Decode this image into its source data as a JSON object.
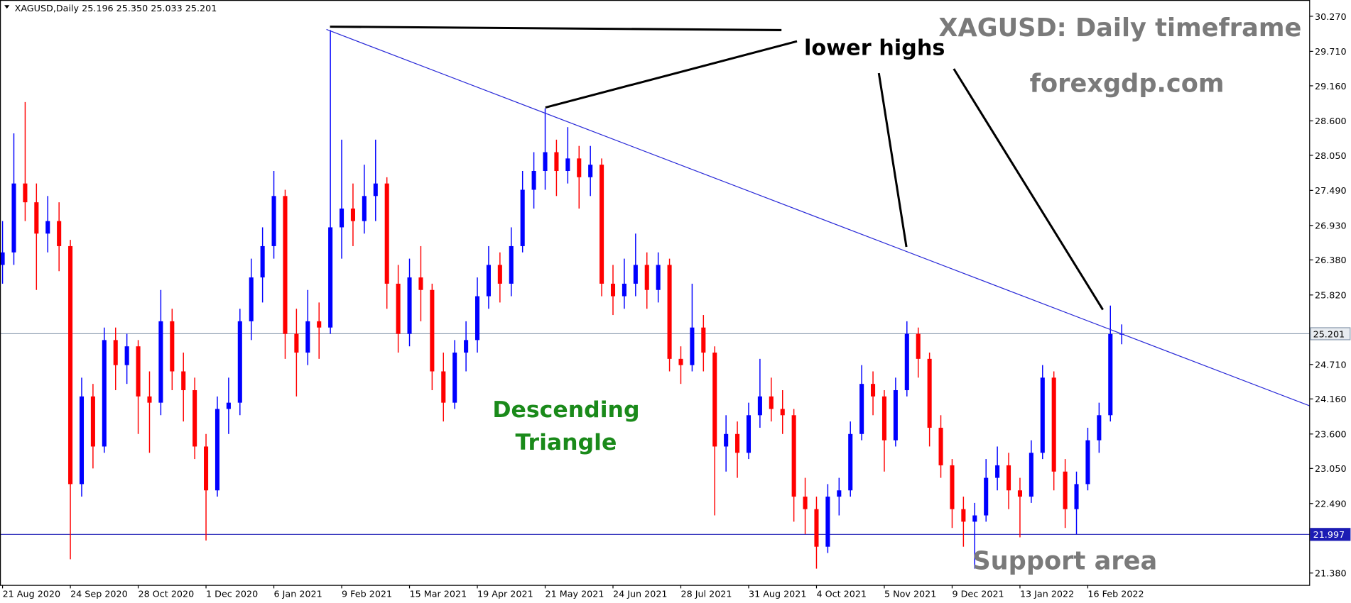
{
  "chart_data": {
    "type": "candlestick",
    "header": "XAGUSD,Daily  25.196 25.350 25.033 25.201",
    "title": "XAGUSD: Daily timeframe",
    "subtitle": "forexgdp.com",
    "annotations": {
      "highs": "lower highs",
      "pattern": [
        "Descending",
        "Triangle"
      ],
      "support": "Support area"
    },
    "up_color": "#0000ff",
    "down_color": "#ff0000",
    "xlim": [
      -0.9,
      462.5
    ],
    "ylim": [
      21.19,
      30.53
    ],
    "xticks": [
      {
        "value": 0,
        "label": "21 Aug 2020"
      },
      {
        "value": 24,
        "label": "24 Sep 2020"
      },
      {
        "value": 48,
        "label": "28 Oct 2020"
      },
      {
        "value": 72,
        "label": "1 Dec 2020"
      },
      {
        "value": 96,
        "label": "6 Jan 2021"
      },
      {
        "value": 120,
        "label": "9 Feb 2021"
      },
      {
        "value": 144,
        "label": "15 Mar 2021"
      },
      {
        "value": 168,
        "label": "19 Apr 2021"
      },
      {
        "value": 192,
        "label": "21 May 2021"
      },
      {
        "value": 216,
        "label": "24 Jun 2021"
      },
      {
        "value": 240,
        "label": "28 Jul 2021"
      },
      {
        "value": 264,
        "label": "31 Aug 2021"
      },
      {
        "value": 288,
        "label": "4 Oct 2021"
      },
      {
        "value": 312,
        "label": "5 Nov 2021"
      },
      {
        "value": 336,
        "label": "9 Dec 2021"
      },
      {
        "value": 360,
        "label": "13 Jan 2022"
      },
      {
        "value": 384,
        "label": "16 Feb 2022"
      }
    ],
    "yticks": [
      {
        "value": 30.27,
        "label": "30.270"
      },
      {
        "value": 29.71,
        "label": "29.710"
      },
      {
        "value": 29.16,
        "label": "29.160"
      },
      {
        "value": 28.6,
        "label": "28.600"
      },
      {
        "value": 28.05,
        "label": "28.050"
      },
      {
        "value": 27.49,
        "label": "27.490"
      },
      {
        "value": 26.93,
        "label": "26.930"
      },
      {
        "value": 26.38,
        "label": "26.380"
      },
      {
        "value": 25.82,
        "label": "25.820"
      },
      {
        "value": 24.71,
        "label": "24.710"
      },
      {
        "value": 24.16,
        "label": "24.160"
      },
      {
        "value": 23.6,
        "label": "23.600"
      },
      {
        "value": 23.05,
        "label": "23.050"
      },
      {
        "value": 22.49,
        "label": "22.490"
      },
      {
        "value": 21.38,
        "label": "21.380"
      }
    ],
    "price_lines": [
      {
        "value": 25.201,
        "color": "#8a9aae"
      },
      {
        "value": 21.997,
        "color": "#1c1cb4"
      }
    ],
    "trendline": {
      "x": [
        114.6,
        462.5
      ],
      "y": [
        30.06,
        24.05
      ],
      "color": "#2a2ad8"
    },
    "x": [
      0,
      4,
      8,
      12,
      16,
      20,
      24,
      28,
      32,
      36,
      40,
      44,
      48,
      52,
      56,
      60,
      64,
      68,
      72,
      76,
      80,
      84,
      88,
      92,
      96,
      100,
      104,
      108,
      112,
      116,
      120,
      124,
      128,
      132,
      136,
      140,
      144,
      148,
      152,
      156,
      160,
      164,
      168,
      172,
      176,
      180,
      184,
      188,
      192,
      196,
      200,
      204,
      208,
      212,
      216,
      220,
      224,
      228,
      232,
      236,
      240,
      244,
      248,
      252,
      256,
      260,
      264,
      268,
      272,
      276,
      280,
      284,
      288,
      292,
      296,
      300,
      304,
      308,
      312,
      316,
      320,
      324,
      328,
      332,
      336,
      340,
      344,
      348,
      352,
      356,
      360,
      364,
      368,
      372,
      376,
      380,
      384,
      388,
      392,
      396
    ],
    "ohlc": [
      [
        26.3,
        27.0,
        26.0,
        26.5
      ],
      [
        26.5,
        28.4,
        26.3,
        27.6
      ],
      [
        27.6,
        28.9,
        27.0,
        27.3
      ],
      [
        27.3,
        27.6,
        25.9,
        26.8
      ],
      [
        26.8,
        27.4,
        26.5,
        27.0
      ],
      [
        27.0,
        27.3,
        26.2,
        26.6
      ],
      [
        26.6,
        26.7,
        21.6,
        22.8
      ],
      [
        22.8,
        24.5,
        22.6,
        24.2
      ],
      [
        24.2,
        24.4,
        23.05,
        23.4
      ],
      [
        23.4,
        25.3,
        23.3,
        25.1
      ],
      [
        25.1,
        25.3,
        24.3,
        24.7
      ],
      [
        24.7,
        25.2,
        24.4,
        25.0
      ],
      [
        25.0,
        25.1,
        23.6,
        24.2
      ],
      [
        24.2,
        24.6,
        23.3,
        24.1
      ],
      [
        24.1,
        25.9,
        23.9,
        25.4
      ],
      [
        25.4,
        25.6,
        24.3,
        24.6
      ],
      [
        24.6,
        24.9,
        23.8,
        24.3
      ],
      [
        24.3,
        24.5,
        23.2,
        23.4
      ],
      [
        23.4,
        23.6,
        21.9,
        22.7
      ],
      [
        22.7,
        24.2,
        22.6,
        24.0
      ],
      [
        24.0,
        24.5,
        23.6,
        24.1
      ],
      [
        24.1,
        25.6,
        23.9,
        25.4
      ],
      [
        25.4,
        26.4,
        25.1,
        26.1
      ],
      [
        26.1,
        26.9,
        25.7,
        26.6
      ],
      [
        26.6,
        27.8,
        26.4,
        27.4
      ],
      [
        27.4,
        27.5,
        24.8,
        25.2
      ],
      [
        25.2,
        25.6,
        24.2,
        24.9
      ],
      [
        24.9,
        25.9,
        24.7,
        25.4
      ],
      [
        25.4,
        25.7,
        24.8,
        25.3
      ],
      [
        25.3,
        30.05,
        25.2,
        26.9
      ],
      [
        26.9,
        28.3,
        26.4,
        27.2
      ],
      [
        27.2,
        27.6,
        26.6,
        27.0
      ],
      [
        27.0,
        27.9,
        26.8,
        27.4
      ],
      [
        27.4,
        28.3,
        27.0,
        27.6
      ],
      [
        27.6,
        27.7,
        25.6,
        26.0
      ],
      [
        26.0,
        26.3,
        24.9,
        25.2
      ],
      [
        25.2,
        26.4,
        25.0,
        26.1
      ],
      [
        26.1,
        26.6,
        25.4,
        25.9
      ],
      [
        25.9,
        26.0,
        24.3,
        24.6
      ],
      [
        24.6,
        24.9,
        23.8,
        24.1
      ],
      [
        24.1,
        25.1,
        24.0,
        24.9
      ],
      [
        24.9,
        25.4,
        24.6,
        25.1
      ],
      [
        25.1,
        26.1,
        24.9,
        25.8
      ],
      [
        25.8,
        26.6,
        25.6,
        26.3
      ],
      [
        26.3,
        26.5,
        25.7,
        26.0
      ],
      [
        26.0,
        26.9,
        25.8,
        26.6
      ],
      [
        26.6,
        27.8,
        26.5,
        27.5
      ],
      [
        27.5,
        28.1,
        27.2,
        27.8
      ],
      [
        27.8,
        28.8,
        27.5,
        28.1
      ],
      [
        28.1,
        28.3,
        27.4,
        27.8
      ],
      [
        27.8,
        28.5,
        27.6,
        28.0
      ],
      [
        28.0,
        28.2,
        27.2,
        27.7
      ],
      [
        27.7,
        28.2,
        27.4,
        27.9
      ],
      [
        27.9,
        28.0,
        25.8,
        26.0
      ],
      [
        26.0,
        26.3,
        25.5,
        25.8
      ],
      [
        25.8,
        26.4,
        25.6,
        26.0
      ],
      [
        26.0,
        26.8,
        25.8,
        26.3
      ],
      [
        26.3,
        26.5,
        25.6,
        25.9
      ],
      [
        25.9,
        26.5,
        25.7,
        26.3
      ],
      [
        26.3,
        26.4,
        24.6,
        24.8
      ],
      [
        24.8,
        25.0,
        24.4,
        24.7
      ],
      [
        24.7,
        26.0,
        24.6,
        25.3
      ],
      [
        25.3,
        25.5,
        24.6,
        24.9
      ],
      [
        24.9,
        25.0,
        22.3,
        23.4
      ],
      [
        23.4,
        23.9,
        23.0,
        23.6
      ],
      [
        23.6,
        23.8,
        22.9,
        23.3
      ],
      [
        23.3,
        24.1,
        23.2,
        23.9
      ],
      [
        23.9,
        24.8,
        23.7,
        24.2
      ],
      [
        24.2,
        24.5,
        23.8,
        24.0
      ],
      [
        24.0,
        24.3,
        23.6,
        23.9
      ],
      [
        23.9,
        24.0,
        22.2,
        22.6
      ],
      [
        22.6,
        22.9,
        22.0,
        22.4
      ],
      [
        22.4,
        22.6,
        21.45,
        21.8
      ],
      [
        21.8,
        22.8,
        21.7,
        22.6
      ],
      [
        22.6,
        22.9,
        22.3,
        22.7
      ],
      [
        22.7,
        23.8,
        22.6,
        23.6
      ],
      [
        23.6,
        24.7,
        23.5,
        24.4
      ],
      [
        24.4,
        24.6,
        23.9,
        24.2
      ],
      [
        24.2,
        24.3,
        23.0,
        23.5
      ],
      [
        23.5,
        24.5,
        23.4,
        24.3
      ],
      [
        24.3,
        25.4,
        24.2,
        25.2
      ],
      [
        25.2,
        25.3,
        24.5,
        24.8
      ],
      [
        24.8,
        24.9,
        23.4,
        23.7
      ],
      [
        23.7,
        23.9,
        22.9,
        23.1
      ],
      [
        23.1,
        23.2,
        22.1,
        22.4
      ],
      [
        22.4,
        22.6,
        21.8,
        22.2
      ],
      [
        22.2,
        22.5,
        21.45,
        22.3
      ],
      [
        22.3,
        23.2,
        22.2,
        22.9
      ],
      [
        22.9,
        23.4,
        22.7,
        23.1
      ],
      [
        23.1,
        23.3,
        22.4,
        22.7
      ],
      [
        22.7,
        22.9,
        21.95,
        22.6
      ],
      [
        22.6,
        23.5,
        22.5,
        23.3
      ],
      [
        23.3,
        24.7,
        23.2,
        24.5
      ],
      [
        24.5,
        24.6,
        22.7,
        23.0
      ],
      [
        23.0,
        23.2,
        22.1,
        22.4
      ],
      [
        22.4,
        23.0,
        22.0,
        22.8
      ],
      [
        22.8,
        23.7,
        22.7,
        23.5
      ],
      [
        23.5,
        24.1,
        23.3,
        23.9
      ],
      [
        23.9,
        25.65,
        23.8,
        25.196
      ],
      [
        25.196,
        25.35,
        25.033,
        25.201
      ]
    ]
  }
}
